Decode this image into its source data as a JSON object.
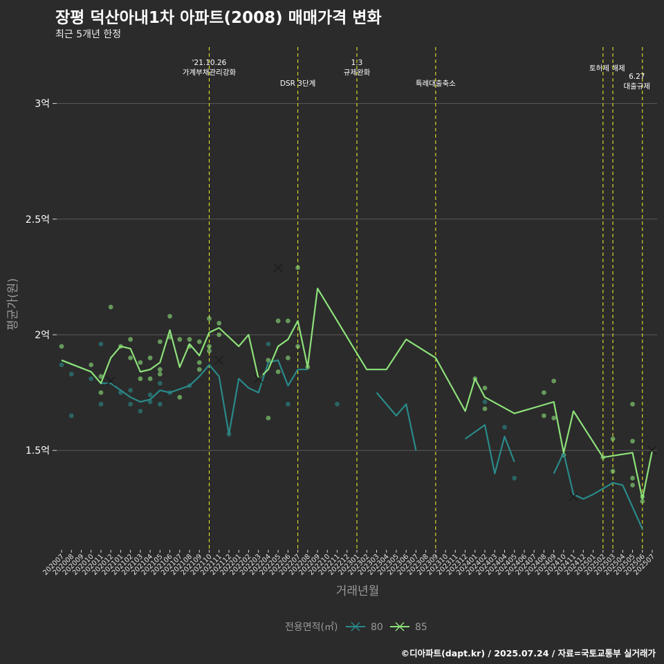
{
  "title": "장평 덕산아내1차 아파트(2008) 매매가격 변화",
  "subtitle": "최근 5개년 한정",
  "caption": "©디아파트(dapt.kr) / 2025.07.24 / 자료=국토교통부 실거래가",
  "colors": {
    "background": "#2b2b2b",
    "grid": "#5a5a5a",
    "series_80": "#2a8a8a",
    "series_85": "#8ee27a",
    "event_line": "#e5e52a"
  },
  "chart_data": {
    "type": "line",
    "xlabel": "거래년월",
    "ylabel": "평균가(원)",
    "x": [
      "202007",
      "202008",
      "202009",
      "202010",
      "202011",
      "202012",
      "202101",
      "202102",
      "202103",
      "202104",
      "202105",
      "202106",
      "202107",
      "202108",
      "202109",
      "202110",
      "202111",
      "202112",
      "202201",
      "202202",
      "202203",
      "202204",
      "202205",
      "202206",
      "202207",
      "202208",
      "202209",
      "202210",
      "202211",
      "202212",
      "202301",
      "202302",
      "202303",
      "202304",
      "202305",
      "202306",
      "202307",
      "202308",
      "202309",
      "202310",
      "202311",
      "202312",
      "202401",
      "202402",
      "202403",
      "202404",
      "202405",
      "202406",
      "202407",
      "202408",
      "202409",
      "202410",
      "202411",
      "202412",
      "202501",
      "202502",
      "202503",
      "202504",
      "202505",
      "202506",
      "202507"
    ],
    "yticks": [
      1.5,
      2.0,
      2.5,
      3.0
    ],
    "ytick_labels": [
      "1.5억",
      "2억",
      "2.5억",
      "3억"
    ],
    "ylim": [
      1.07,
      3.25
    ],
    "grid": true,
    "legend": {
      "title": "전용면적(㎡)",
      "position": "bottom"
    },
    "series": [
      {
        "name": "80",
        "line": [
          {
            "x": "202007",
            "y": 1.89
          },
          {
            "x": "202010",
            "y": 1.84
          },
          {
            "x": "202011",
            "y": 1.79
          },
          {
            "x": "202012",
            "y": 1.79
          },
          {
            "x": "202102",
            "y": 1.73
          },
          {
            "x": "202103",
            "y": 1.71
          },
          {
            "x": "202104",
            "y": 1.72
          },
          {
            "x": "202105",
            "y": 1.76
          },
          {
            "x": "202106",
            "y": 1.75
          },
          {
            "x": "202108",
            "y": 1.78
          },
          {
            "x": "202109",
            "y": 1.82
          },
          {
            "x": "202110",
            "y": 1.87
          },
          {
            "x": "202111",
            "y": 1.82
          },
          {
            "x": "202112",
            "y": 1.57
          },
          {
            "x": "202201",
            "y": 1.81
          },
          {
            "x": "202202",
            "y": 1.77
          },
          {
            "x": "202203",
            "y": 1.75
          },
          {
            "x": "202204",
            "y": 1.88
          },
          {
            "x": "202205",
            "y": 1.89
          },
          {
            "x": "202206",
            "y": 1.78
          },
          {
            "x": "202207",
            "y": 1.85
          },
          {
            "x": "202208",
            "y": 1.85
          },
          null,
          {
            "x": "202303",
            "y": 1.75
          },
          {
            "x": "202305",
            "y": 1.65
          },
          {
            "x": "202306",
            "y": 1.7
          },
          {
            "x": "202307",
            "y": 1.5
          },
          null,
          {
            "x": "202312",
            "y": 1.55
          },
          {
            "x": "202402",
            "y": 1.61
          },
          {
            "x": "202403",
            "y": 1.4
          },
          {
            "x": "202404",
            "y": 1.56
          },
          {
            "x": "202405",
            "y": 1.45
          },
          null,
          {
            "x": "202409",
            "y": 1.4
          },
          {
            "x": "202410",
            "y": 1.49
          },
          {
            "x": "202411",
            "y": 1.31
          },
          {
            "x": "202412",
            "y": 1.29
          },
          {
            "x": "202501",
            "y": 1.31
          },
          {
            "x": "202503",
            "y": 1.36
          },
          {
            "x": "202504",
            "y": 1.35
          },
          {
            "x": "202506",
            "y": 1.16
          }
        ],
        "points": [
          {
            "x": "202007",
            "y": 1.87
          },
          {
            "x": "202008",
            "y": 1.83
          },
          {
            "x": "202008",
            "y": 1.65
          },
          {
            "x": "202010",
            "y": 1.81
          },
          {
            "x": "202011",
            "y": 1.96
          },
          {
            "x": "202011",
            "y": 1.7
          },
          {
            "x": "202101",
            "y": 1.75
          },
          {
            "x": "202102",
            "y": 1.7
          },
          {
            "x": "202102",
            "y": 1.76
          },
          {
            "x": "202103",
            "y": 1.67
          },
          {
            "x": "202104",
            "y": 1.71
          },
          {
            "x": "202104",
            "y": 1.74
          },
          {
            "x": "202105",
            "y": 1.79
          },
          {
            "x": "202105",
            "y": 1.7
          },
          {
            "x": "202106",
            "y": 1.75
          },
          {
            "x": "202108",
            "y": 1.78
          },
          {
            "x": "202112",
            "y": 1.57
          },
          {
            "x": "202204",
            "y": 1.96
          },
          {
            "x": "202206",
            "y": 1.7
          },
          {
            "x": "202211",
            "y": 1.7
          },
          {
            "x": "202405",
            "y": 1.38
          },
          {
            "x": "202404",
            "y": 1.6
          },
          {
            "x": "202402",
            "y": 1.71
          }
        ],
        "cancelled": [
          {
            "x": "202012",
            "y": 1.8
          },
          {
            "x": "202203",
            "y": 1.81
          },
          {
            "x": "202411",
            "y": 1.3
          }
        ]
      },
      {
        "name": "85",
        "line": [
          {
            "x": "202007",
            "y": 1.89
          },
          {
            "x": "202010",
            "y": 1.84
          },
          {
            "x": "202011",
            "y": 1.79
          },
          {
            "x": "202012",
            "y": 1.9
          },
          {
            "x": "202101",
            "y": 1.95
          },
          {
            "x": "202102",
            "y": 1.94
          },
          {
            "x": "202103",
            "y": 1.84
          },
          {
            "x": "202104",
            "y": 1.85
          },
          {
            "x": "202105",
            "y": 1.88
          },
          {
            "x": "202106",
            "y": 2.02
          },
          {
            "x": "202107",
            "y": 1.86
          },
          {
            "x": "202108",
            "y": 1.96
          },
          {
            "x": "202109",
            "y": 1.91
          },
          {
            "x": "202110",
            "y": 2.01
          },
          {
            "x": "202111",
            "y": 2.03
          },
          {
            "x": "202201",
            "y": 1.95
          },
          {
            "x": "202202",
            "y": 2.0
          },
          {
            "x": "202203",
            "y": 1.81
          },
          {
            "x": "202204",
            "y": 1.85
          },
          {
            "x": "202205",
            "y": 1.95
          },
          {
            "x": "202206",
            "y": 1.98
          },
          {
            "x": "202207",
            "y": 2.06
          },
          {
            "x": "202208",
            "y": 1.86
          },
          {
            "x": "202209",
            "y": 2.2
          },
          {
            "x": "202302",
            "y": 1.85
          },
          {
            "x": "202304",
            "y": 1.85
          },
          {
            "x": "202306",
            "y": 1.98
          },
          {
            "x": "202309",
            "y": 1.9
          },
          {
            "x": "202312",
            "y": 1.67
          },
          {
            "x": "202401",
            "y": 1.81
          },
          {
            "x": "202402",
            "y": 1.73
          },
          {
            "x": "202405",
            "y": 1.66
          },
          {
            "x": "202409",
            "y": 1.71
          },
          {
            "x": "202410",
            "y": 1.49
          },
          {
            "x": "202411",
            "y": 1.67
          },
          {
            "x": "202502",
            "y": 1.47
          },
          {
            "x": "202505",
            "y": 1.49
          },
          {
            "x": "202506",
            "y": 1.29
          },
          {
            "x": "202507",
            "y": 1.5
          }
        ],
        "points": [
          {
            "x": "202007",
            "y": 1.95
          },
          {
            "x": "202010",
            "y": 1.87
          },
          {
            "x": "202011",
            "y": 1.75
          },
          {
            "x": "202011",
            "y": 1.82
          },
          {
            "x": "202012",
            "y": 2.12
          },
          {
            "x": "202101",
            "y": 1.95
          },
          {
            "x": "202102",
            "y": 1.98
          },
          {
            "x": "202102",
            "y": 1.9
          },
          {
            "x": "202103",
            "y": 1.88
          },
          {
            "x": "202103",
            "y": 1.81
          },
          {
            "x": "202104",
            "y": 1.9
          },
          {
            "x": "202104",
            "y": 1.81
          },
          {
            "x": "202105",
            "y": 1.97
          },
          {
            "x": "202105",
            "y": 1.83
          },
          {
            "x": "202105",
            "y": 1.85
          },
          {
            "x": "202106",
            "y": 2.08
          },
          {
            "x": "202106",
            "y": 1.99
          },
          {
            "x": "202107",
            "y": 1.98
          },
          {
            "x": "202107",
            "y": 1.73
          },
          {
            "x": "202108",
            "y": 1.98
          },
          {
            "x": "202108",
            "y": 1.95
          },
          {
            "x": "202109",
            "y": 1.97
          },
          {
            "x": "202109",
            "y": 1.88
          },
          {
            "x": "202109",
            "y": 1.85
          },
          {
            "x": "202110",
            "y": 2.07
          },
          {
            "x": "202110",
            "y": 1.95
          },
          {
            "x": "202110",
            "y": 1.93
          },
          {
            "x": "202111",
            "y": 2.05
          },
          {
            "x": "202111",
            "y": 2.0
          },
          {
            "x": "202204",
            "y": 1.89
          },
          {
            "x": "202204",
            "y": 1.64
          },
          {
            "x": "202205",
            "y": 1.84
          },
          {
            "x": "202205",
            "y": 2.06
          },
          {
            "x": "202206",
            "y": 2.06
          },
          {
            "x": "202206",
            "y": 1.9
          },
          {
            "x": "202207",
            "y": 2.29
          },
          {
            "x": "202207",
            "y": 1.95
          },
          {
            "x": "202208",
            "y": 1.86
          },
          {
            "x": "202401",
            "y": 1.81
          },
          {
            "x": "202402",
            "y": 1.77
          },
          {
            "x": "202402",
            "y": 1.68
          },
          {
            "x": "202408",
            "y": 1.75
          },
          {
            "x": "202408",
            "y": 1.65
          },
          {
            "x": "202409",
            "y": 1.8
          },
          {
            "x": "202409",
            "y": 1.64
          },
          {
            "x": "202410",
            "y": 1.48
          },
          {
            "x": "202502",
            "y": 1.47
          },
          {
            "x": "202503",
            "y": 1.55
          },
          {
            "x": "202503",
            "y": 1.41
          },
          {
            "x": "202505",
            "y": 1.7
          },
          {
            "x": "202505",
            "y": 1.54
          },
          {
            "x": "202505",
            "y": 1.38
          },
          {
            "x": "202505",
            "y": 1.35
          },
          {
            "x": "202506",
            "y": 1.28
          },
          {
            "x": "202506",
            "y": 1.3
          }
        ],
        "cancelled": [
          {
            "x": "202111",
            "y": 1.89
          },
          {
            "x": "202205",
            "y": 2.29
          },
          {
            "x": "202507",
            "y": 1.5
          }
        ]
      }
    ],
    "events": [
      {
        "x": "202110",
        "lines": [
          "'21.10.26",
          "가계부채관리강화"
        ]
      },
      {
        "x": "202207",
        "lines": [
          "DSR 3단계"
        ]
      },
      {
        "x": "202301",
        "lines": [
          "1.3",
          "규제완화"
        ]
      },
      {
        "x": "202309",
        "lines": [
          "특례대출축소"
        ]
      },
      {
        "x": "202502",
        "lines": [
          "토허제 해제"
        ]
      },
      {
        "x": "202503",
        "lines": []
      },
      {
        "x": "202506",
        "lines": [
          "6.27",
          "대출규제"
        ]
      }
    ]
  }
}
